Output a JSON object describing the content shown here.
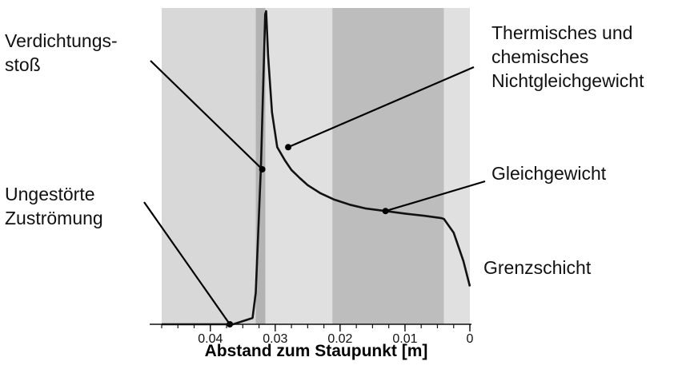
{
  "chart_data": {
    "type": "line",
    "xlabel": "Abstand zum Staupunkt [m]",
    "ylabel": "",
    "x_reversed": true,
    "xlim": [
      0.0475,
      0.0
    ],
    "x_ticks": [
      0.04,
      0.03,
      0.02,
      0.01,
      0
    ],
    "x_tick_labels": [
      "0.04",
      "0.03",
      "0.02",
      "0.01",
      "0"
    ],
    "ylim": [
      0,
      1
    ],
    "grid": false,
    "regions": [
      {
        "x_from": 0.0475,
        "x_to": 0.033,
        "color": "#d8d8d8"
      },
      {
        "x_from": 0.033,
        "x_to": 0.0315,
        "color": "#b3b3b3"
      },
      {
        "x_from": 0.0315,
        "x_to": 0.0212,
        "color": "#e0e0e0"
      },
      {
        "x_from": 0.0212,
        "x_to": 0.004,
        "color": "#bdbdbd"
      },
      {
        "x_from": 0.004,
        "x_to": 0.0,
        "color": "#e0e0e0"
      }
    ],
    "series": [
      {
        "color": "#111111",
        "x": [
          0.0475,
          0.0365,
          0.0335,
          0.033,
          0.0322,
          0.0318,
          0.03155,
          0.0314,
          0.0311,
          0.0305,
          0.0297,
          0.0285,
          0.0275,
          0.0262,
          0.025,
          0.023,
          0.021,
          0.0185,
          0.016,
          0.013,
          0.01,
          0.007,
          0.0045,
          0.004,
          0.0025,
          0.001,
          0.0
        ],
        "y": [
          0.0,
          0.0,
          0.02,
          0.1,
          0.5,
          0.8,
          0.98,
          0.99,
          0.85,
          0.67,
          0.56,
          0.518,
          0.488,
          0.462,
          0.44,
          0.414,
          0.395,
          0.378,
          0.366,
          0.358,
          0.35,
          0.343,
          0.336,
          0.333,
          0.29,
          0.2,
          0.12
        ]
      }
    ],
    "annotations": [
      {
        "text": "Verdichtungs-\nstoß",
        "color": "#111111",
        "point": [
          0.032,
          0.49
        ]
      },
      {
        "text": "Ungestörte\nZuströmung",
        "color": "#111111",
        "point": [
          0.037,
          0.0
        ]
      },
      {
        "text": "Thermisches und\nchemisches\nNichtgleichgewicht",
        "color": "#111111",
        "point": [
          0.028,
          0.56
        ]
      },
      {
        "text": "Gleichgewicht",
        "color": "#a6a6a6",
        "point": [
          0.013,
          0.358
        ]
      },
      {
        "text": "Grenzschicht",
        "color": "#111111",
        "point": null
      }
    ]
  }
}
